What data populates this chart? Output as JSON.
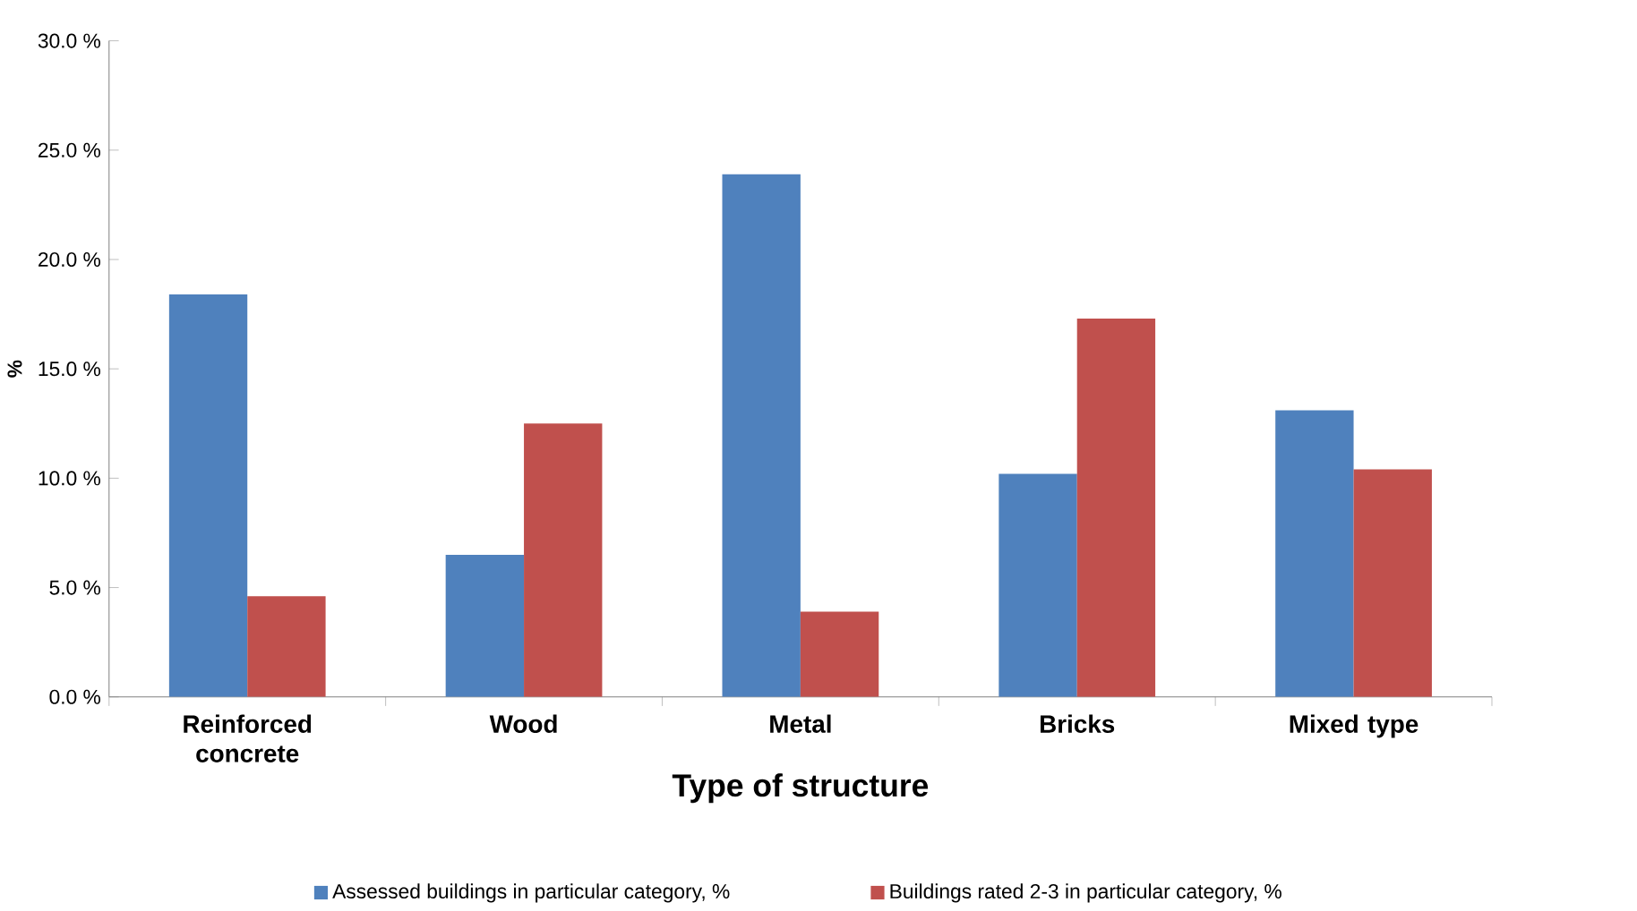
{
  "chart_data": {
    "type": "bar",
    "xlabel": "Type of structure",
    "ylabel": "%",
    "categories": [
      "Reinforced concrete",
      "Wood",
      "Metal",
      "Bricks",
      "Mixed type"
    ],
    "series": [
      {
        "name": "Assessed buildings in particular category, %",
        "color": "#4f81bd",
        "values": [
          18.4,
          6.5,
          23.9,
          10.2,
          13.1
        ]
      },
      {
        "name": "Buildings rated 2-3 in particular category, %",
        "color": "#c0504d",
        "values": [
          4.6,
          12.5,
          3.9,
          17.3,
          10.4
        ]
      }
    ],
    "ylim": [
      0,
      30
    ],
    "yticks": [
      {
        "value": 0,
        "label": "0.0 %"
      },
      {
        "value": 5,
        "label": "5.0 %"
      },
      {
        "value": 10,
        "label": "10.0 %"
      },
      {
        "value": 15,
        "label": "15.0 %"
      },
      {
        "value": 20,
        "label": "20.0 %"
      },
      {
        "value": 25,
        "label": "25.0 %"
      },
      {
        "value": 30,
        "label": "30.0 %"
      }
    ],
    "grid": false,
    "legend": "bottom"
  }
}
